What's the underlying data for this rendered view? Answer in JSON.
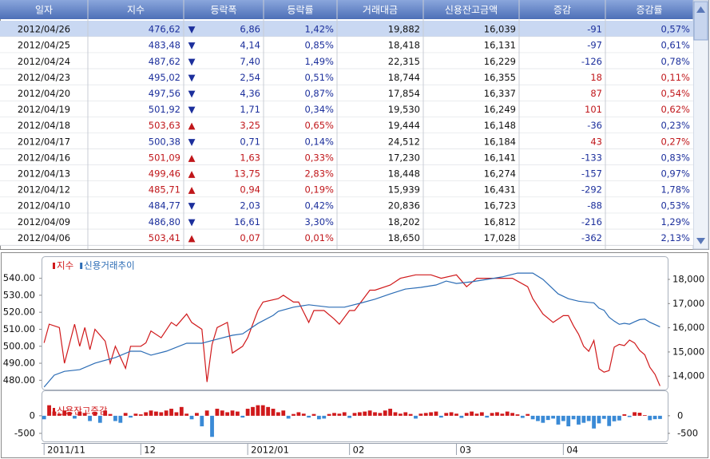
{
  "table": {
    "headers": [
      "일자",
      "지수",
      "등락폭",
      "등락률",
      "거래대금",
      "신용잔고금액",
      "증감",
      "증감률"
    ],
    "rows": [
      [
        "2012/04/26",
        "476,62",
        "▼",
        "6,86",
        "1,42%",
        "19,882",
        "16,039",
        "-91",
        "0,57%"
      ],
      [
        "2012/04/25",
        "483,48",
        "▼",
        "4,14",
        "0,85%",
        "18,418",
        "16,131",
        "-97",
        "0,61%"
      ],
      [
        "2012/04/24",
        "487,62",
        "▼",
        "7,40",
        "1,49%",
        "22,315",
        "16,229",
        "-126",
        "0,78%"
      ],
      [
        "2012/04/23",
        "495,02",
        "▼",
        "2,54",
        "0,51%",
        "18,744",
        "16,355",
        "18",
        "0,11%"
      ],
      [
        "2012/04/20",
        "497,56",
        "▼",
        "4,36",
        "0,87%",
        "17,854",
        "16,337",
        "87",
        "0,54%"
      ],
      [
        "2012/04/19",
        "501,92",
        "▼",
        "1,71",
        "0,34%",
        "19,530",
        "16,249",
        "101",
        "0,62%"
      ],
      [
        "2012/04/18",
        "503,63",
        "▲",
        "3,25",
        "0,65%",
        "19,444",
        "16,148",
        "-36",
        "0,23%"
      ],
      [
        "2012/04/17",
        "500,38",
        "▼",
        "0,71",
        "0,14%",
        "24,512",
        "16,184",
        "43",
        "0,27%"
      ],
      [
        "2012/04/16",
        "501,09",
        "▲",
        "1,63",
        "0,33%",
        "17,230",
        "16,141",
        "-133",
        "0,83%"
      ],
      [
        "2012/04/13",
        "499,46",
        "▲",
        "13,75",
        "2,83%",
        "18,448",
        "16,274",
        "-157",
        "0,97%"
      ],
      [
        "2012/04/12",
        "485,71",
        "▲",
        "0,94",
        "0,19%",
        "15,939",
        "16,431",
        "-292",
        "1,78%"
      ],
      [
        "2012/04/10",
        "484,77",
        "▼",
        "2,03",
        "0,42%",
        "20,836",
        "16,723",
        "-88",
        "0,53%"
      ],
      [
        "2012/04/09",
        "486,80",
        "▼",
        "16,61",
        "3,30%",
        "18,202",
        "16,812",
        "-216",
        "1,29%"
      ],
      [
        "2012/04/06",
        "503,41",
        "▲",
        "0,07",
        "0,01%",
        "18,650",
        "17,028",
        "-362",
        "2,13%"
      ]
    ]
  },
  "chart_data": [
    {
      "type": "line",
      "legend": "top-left",
      "xlim": [
        -0.5,
        122.5
      ],
      "ylim": [
        475,
        552
      ],
      "yticks": [
        {
          "value": 480,
          "label": "480.00"
        },
        {
          "value": 490,
          "label": "490.00"
        },
        {
          "value": 500,
          "label": "500.00"
        },
        {
          "value": 510,
          "label": "510.00"
        },
        {
          "value": 520,
          "label": "520.00"
        },
        {
          "value": 530,
          "label": "530.00"
        },
        {
          "value": 540,
          "label": "540.00"
        }
      ],
      "y2lim": [
        13480,
        18890
      ],
      "y2ticks": [
        {
          "value": 14000,
          "label": "14,000"
        },
        {
          "value": 15000,
          "label": "15,000"
        },
        {
          "value": 16000,
          "label": "16,000"
        },
        {
          "value": 17000,
          "label": "17,000"
        },
        {
          "value": 18000,
          "label": "18,000"
        }
      ],
      "series": [
        {
          "name": "지수",
          "color": "#d0191b",
          "axis": "y",
          "x": [
            0,
            1,
            3,
            4,
            6,
            7,
            8,
            9,
            10,
            12,
            13,
            14,
            16,
            17,
            19,
            20,
            21,
            23,
            25,
            26,
            28,
            29,
            31,
            32,
            33,
            34,
            36,
            37,
            39,
            40,
            42,
            43,
            46,
            47,
            49,
            50,
            52,
            53,
            55,
            57,
            58,
            60,
            61,
            64,
            65,
            68,
            70,
            73,
            76,
            78,
            81,
            83,
            85,
            89,
            92,
            95,
            96,
            98,
            100,
            102,
            103,
            104,
            105,
            106,
            107,
            108,
            109,
            110,
            111,
            112,
            113,
            114,
            115,
            116,
            117,
            118,
            119,
            120,
            121
          ],
          "values": [
            502,
            513,
            511,
            490,
            513,
            500,
            511,
            498,
            510,
            503,
            490,
            500,
            487,
            500,
            500,
            502,
            509,
            505,
            514,
            512,
            519,
            514,
            510,
            479,
            501,
            511,
            514,
            496,
            500,
            505,
            521,
            526,
            528,
            530,
            526,
            526,
            514,
            521,
            521,
            516,
            513,
            521,
            521,
            533,
            533,
            536,
            540,
            542,
            542,
            540,
            542,
            535,
            540,
            540,
            540,
            535,
            528,
            519,
            514,
            518,
            518,
            512,
            507,
            500,
            497,
            503.41,
            486.8,
            484.77,
            485.71,
            499.46,
            501.09,
            500.38,
            503.63,
            501.92,
            497.56,
            495.02,
            487.62,
            483.48,
            476.62
          ]
        },
        {
          "name": "신용거래추이",
          "color": "#2b6cb5",
          "axis": "y2",
          "x": [
            0,
            2,
            4,
            7,
            10,
            14,
            17,
            19,
            21,
            24,
            28,
            31,
            34,
            37,
            39,
            42,
            45,
            46,
            49,
            52,
            56,
            59,
            62,
            65,
            68,
            71,
            74,
            77,
            79,
            81,
            84,
            87,
            90,
            93,
            96,
            98,
            101,
            103,
            105,
            107,
            108,
            109,
            110,
            111,
            112,
            113,
            114,
            115,
            116,
            117,
            118,
            119,
            120,
            121
          ],
          "values": [
            13550,
            14040,
            14200,
            14270,
            14540,
            14770,
            15030,
            15030,
            14870,
            15030,
            15360,
            15360,
            15530,
            15690,
            15750,
            16180,
            16510,
            16680,
            16850,
            16950,
            16850,
            16850,
            17010,
            17180,
            17400,
            17600,
            17670,
            17770,
            17930,
            17830,
            17900,
            18000,
            18100,
            18260,
            18260,
            18000,
            17400,
            17200,
            17100,
            17050,
            17028,
            16812,
            16723,
            16431,
            16274,
            16141,
            16184,
            16148,
            16249,
            16337,
            16355,
            16229,
            16131,
            16039
          ]
        }
      ]
    },
    {
      "type": "bar",
      "legend": "top-left",
      "xlim": [
        -0.5,
        122.5
      ],
      "ylim": [
        -730,
        360
      ],
      "yticks": [
        0,
        -500
      ],
      "xticks": [
        {
          "value": 0,
          "label": "2011/11"
        },
        {
          "value": 19,
          "label": "12"
        },
        {
          "value": 40,
          "label": "2012/01"
        },
        {
          "value": 60,
          "label": "02"
        },
        {
          "value": 81,
          "label": "03"
        },
        {
          "value": 102,
          "label": "04"
        }
      ],
      "series": [
        {
          "name": "신용잔고증감",
          "color": "#d0191b",
          "negative_color": "#3a8ad6",
          "x": [
            0,
            1,
            2,
            3,
            4,
            5,
            6,
            7,
            8,
            9,
            10,
            11,
            12,
            13,
            14,
            15,
            16,
            17,
            18,
            19,
            20,
            21,
            22,
            23,
            24,
            25,
            26,
            27,
            28,
            29,
            30,
            31,
            32,
            33,
            34,
            35,
            36,
            37,
            38,
            39,
            40,
            41,
            42,
            43,
            44,
            45,
            46,
            47,
            48,
            49,
            50,
            51,
            52,
            53,
            54,
            55,
            56,
            57,
            58,
            59,
            60,
            61,
            62,
            63,
            64,
            65,
            66,
            67,
            68,
            69,
            70,
            71,
            72,
            73,
            74,
            75,
            76,
            77,
            78,
            79,
            80,
            81,
            82,
            83,
            84,
            85,
            86,
            87,
            88,
            89,
            90,
            91,
            92,
            93,
            94,
            95,
            96,
            97,
            98,
            99,
            100,
            101,
            102,
            103,
            104,
            105,
            106,
            107,
            108,
            109,
            110,
            111,
            112,
            113,
            114,
            115,
            116,
            117,
            118,
            119,
            120,
            121
          ],
          "values": [
            -100,
            300,
            120,
            60,
            150,
            100,
            -80,
            120,
            80,
            -150,
            100,
            -200,
            150,
            50,
            -150,
            -200,
            80,
            -50,
            60,
            40,
            100,
            150,
            120,
            100,
            150,
            200,
            100,
            250,
            60,
            -100,
            80,
            -300,
            150,
            -600,
            200,
            150,
            100,
            150,
            120,
            -50,
            200,
            250,
            300,
            300,
            250,
            200,
            100,
            150,
            -80,
            50,
            100,
            60,
            -50,
            50,
            -100,
            -80,
            50,
            80,
            60,
            100,
            -60,
            80,
            100,
            120,
            150,
            100,
            80,
            150,
            200,
            100,
            60,
            100,
            50,
            -80,
            60,
            80,
            100,
            120,
            -50,
            80,
            100,
            60,
            -60,
            80,
            120,
            60,
            100,
            -50,
            80,
            100,
            60,
            120,
            80,
            40,
            -60,
            50,
            -100,
            -150,
            -200,
            -120,
            -80,
            -250,
            -150,
            -300,
            -100,
            -250,
            -200,
            -150,
            -362,
            -216,
            -88,
            -292,
            -157,
            -133,
            43,
            -36,
            101,
            87,
            18,
            -126,
            -97,
            -91
          ]
        }
      ]
    }
  ]
}
